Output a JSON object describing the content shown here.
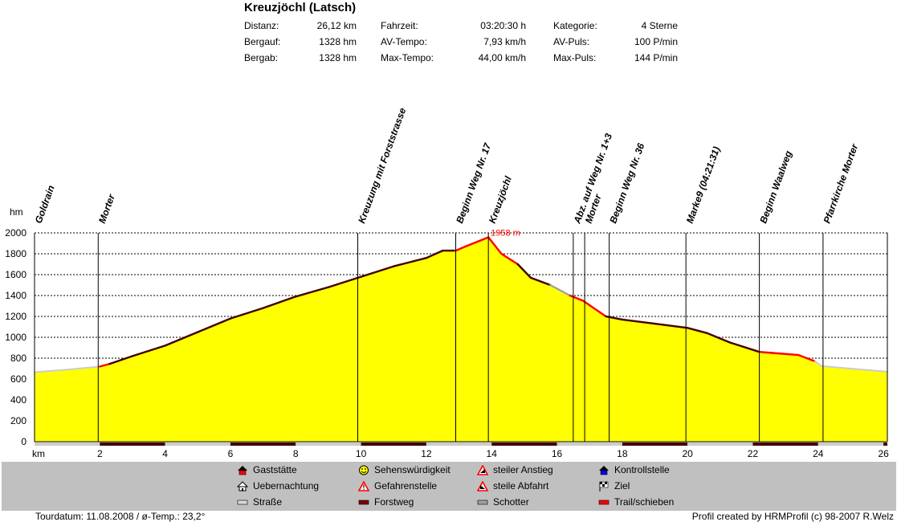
{
  "title": "Kreuzjöchl (Latsch)",
  "stats": [
    {
      "label": "Distanz:",
      "value": "26,12 km"
    },
    {
      "label": "Bergauf:",
      "value": "1328 hm"
    },
    {
      "label": "Bergab:",
      "value": "1328 hm"
    },
    {
      "label": "Fahrzeit:",
      "value": "03:20:30 h"
    },
    {
      "label": "AV-Tempo:",
      "value": "7,93 km/h"
    },
    {
      "label": "Max-Tempo:",
      "value": "44,00 km/h"
    },
    {
      "label": "Kategorie:",
      "value": "4 Sterne"
    },
    {
      "label": "AV-Puls:",
      "value": "100 P/min"
    },
    {
      "label": "Max-Puls:",
      "value": "144 P/min"
    }
  ],
  "footer": {
    "left": "Tourdatum: 11.08.2008  /  ø-Temp.: 23,2°",
    "right": "Profil created by HRMProfil (c) 98-2007 R.Welz"
  },
  "legend": [
    {
      "label": "Gaststätte",
      "icon": "house-red-icon",
      "color": "#ff0000"
    },
    {
      "label": "Uebernachtung",
      "icon": "hut-icon",
      "color": "#ffffff"
    },
    {
      "label": "Straße",
      "icon": "road-swatch-icon",
      "color": "#d8d8d8"
    },
    {
      "label": "Sehenswürdigkeit",
      "icon": "smiley-icon",
      "color": "#ffff00"
    },
    {
      "label": "Gefahrenstelle",
      "icon": "warning-triangle-icon",
      "color": "#ff0000"
    },
    {
      "label": "Forstweg",
      "icon": "forest-road-swatch-icon",
      "color": "#800000"
    },
    {
      "label": "steiler Anstieg",
      "icon": "steep-up-icon",
      "color": "#ff0000"
    },
    {
      "label": "steile Abfahrt",
      "icon": "steep-down-icon",
      "color": "#ff0000"
    },
    {
      "label": "Schotter",
      "icon": "gravel-swatch-icon",
      "color": "#a0a0a0"
    },
    {
      "label": "Kontrollstelle",
      "icon": "checkpoint-icon",
      "color": "#0000ff"
    },
    {
      "label": "Ziel",
      "icon": "finish-flag-icon",
      "color": "#000000"
    },
    {
      "label": "Trail/schieben",
      "icon": "trail-swatch-icon",
      "color": "#ff0000"
    }
  ],
  "chart_data": {
    "type": "area",
    "ylabel": "hm",
    "xlabel": "km",
    "xlim": [
      0,
      26.12
    ],
    "ylim": [
      0,
      2000
    ],
    "yticks": [
      0,
      200,
      400,
      600,
      800,
      1000,
      1200,
      1400,
      1600,
      1800,
      2000
    ],
    "xticks": [
      2,
      4,
      6,
      8,
      10,
      12,
      14,
      16,
      18,
      20,
      22,
      24,
      26
    ],
    "grid": true,
    "fill_color": "#ffff00",
    "peak_label": "1958 m",
    "profile": [
      {
        "x": 0.0,
        "y": 665,
        "surface": "road"
      },
      {
        "x": 1.0,
        "y": 690,
        "surface": "road"
      },
      {
        "x": 2.0,
        "y": 720,
        "surface": "road"
      },
      {
        "x": 2.3,
        "y": 745,
        "surface": "trail"
      },
      {
        "x": 3.0,
        "y": 820,
        "surface": "forest"
      },
      {
        "x": 4.0,
        "y": 920,
        "surface": "forest"
      },
      {
        "x": 5.0,
        "y": 1050,
        "surface": "forest"
      },
      {
        "x": 6.0,
        "y": 1180,
        "surface": "forest"
      },
      {
        "x": 7.0,
        "y": 1280,
        "surface": "forest"
      },
      {
        "x": 8.0,
        "y": 1390,
        "surface": "forest"
      },
      {
        "x": 9.0,
        "y": 1480,
        "surface": "forest"
      },
      {
        "x": 10.0,
        "y": 1580,
        "surface": "forest"
      },
      {
        "x": 11.0,
        "y": 1680,
        "surface": "forest"
      },
      {
        "x": 12.0,
        "y": 1760,
        "surface": "forest"
      },
      {
        "x": 12.5,
        "y": 1830,
        "surface": "forest"
      },
      {
        "x": 12.9,
        "y": 1830,
        "surface": "forest"
      },
      {
        "x": 13.2,
        "y": 1870,
        "surface": "trail"
      },
      {
        "x": 13.6,
        "y": 1920,
        "surface": "trail"
      },
      {
        "x": 13.9,
        "y": 1958,
        "surface": "trail"
      },
      {
        "x": 14.3,
        "y": 1800,
        "surface": "trail"
      },
      {
        "x": 14.8,
        "y": 1700,
        "surface": "trail"
      },
      {
        "x": 15.2,
        "y": 1570,
        "surface": "forest"
      },
      {
        "x": 15.8,
        "y": 1500,
        "surface": "forest"
      },
      {
        "x": 16.4,
        "y": 1400,
        "surface": "gravel"
      },
      {
        "x": 16.8,
        "y": 1350,
        "surface": "trail"
      },
      {
        "x": 17.5,
        "y": 1200,
        "surface": "trail"
      },
      {
        "x": 18.0,
        "y": 1170,
        "surface": "forest"
      },
      {
        "x": 19.0,
        "y": 1130,
        "surface": "forest"
      },
      {
        "x": 20.0,
        "y": 1090,
        "surface": "forest"
      },
      {
        "x": 20.6,
        "y": 1040,
        "surface": "forest"
      },
      {
        "x": 21.3,
        "y": 950,
        "surface": "forest"
      },
      {
        "x": 22.2,
        "y": 860,
        "surface": "forest"
      },
      {
        "x": 22.6,
        "y": 850,
        "surface": "trail"
      },
      {
        "x": 23.4,
        "y": 830,
        "surface": "trail"
      },
      {
        "x": 23.9,
        "y": 770,
        "surface": "trail"
      },
      {
        "x": 24.1,
        "y": 725,
        "surface": "road"
      },
      {
        "x": 25.0,
        "y": 700,
        "surface": "road"
      },
      {
        "x": 26.12,
        "y": 670,
        "surface": "road"
      }
    ],
    "waypoints": [
      {
        "x": 0.0,
        "label": "Goldrain"
      },
      {
        "x": 1.95,
        "label": "Morter"
      },
      {
        "x": 9.9,
        "label": "Kreuzung mit Forststrasse"
      },
      {
        "x": 12.9,
        "label": "Beginn Weg Nr. 17"
      },
      {
        "x": 13.9,
        "label": "Kreuzjöchl"
      },
      {
        "x": 16.5,
        "label": "Abz. auf Weg Nr. 1+3"
      },
      {
        "x": 16.85,
        "label": "Morter"
      },
      {
        "x": 17.6,
        "label": "Beginn Weg Nr. 36"
      },
      {
        "x": 19.95,
        "label": "Marke9 (04:21:31)"
      },
      {
        "x": 22.2,
        "label": "Beginn Waalweg"
      },
      {
        "x": 24.15,
        "label": "Pfarrkirche Morter"
      }
    ],
    "surface_bar": [
      {
        "from": 0.0,
        "to": 2.0,
        "surface": "road"
      },
      {
        "from": 2.0,
        "to": 4.0,
        "surface": "forest"
      },
      {
        "from": 4.0,
        "to": 6.0,
        "surface": "road"
      },
      {
        "from": 6.0,
        "to": 8.0,
        "surface": "forest"
      },
      {
        "from": 8.0,
        "to": 10.0,
        "surface": "road"
      },
      {
        "from": 10.0,
        "to": 12.0,
        "surface": "forest"
      },
      {
        "from": 12.0,
        "to": 14.0,
        "surface": "road"
      },
      {
        "from": 14.0,
        "to": 16.0,
        "surface": "forest"
      },
      {
        "from": 16.0,
        "to": 18.0,
        "surface": "road"
      },
      {
        "from": 18.0,
        "to": 20.0,
        "surface": "forest"
      },
      {
        "from": 20.0,
        "to": 22.0,
        "surface": "road"
      },
      {
        "from": 22.0,
        "to": 24.0,
        "surface": "forest"
      },
      {
        "from": 24.0,
        "to": 26.0,
        "surface": "road"
      },
      {
        "from": 26.0,
        "to": 26.12,
        "surface": "forest"
      }
    ],
    "surface_colors": {
      "road": "#cccccc",
      "forest": "#400000",
      "gravel": "#a0a0a0",
      "trail": "#ff0000"
    }
  }
}
